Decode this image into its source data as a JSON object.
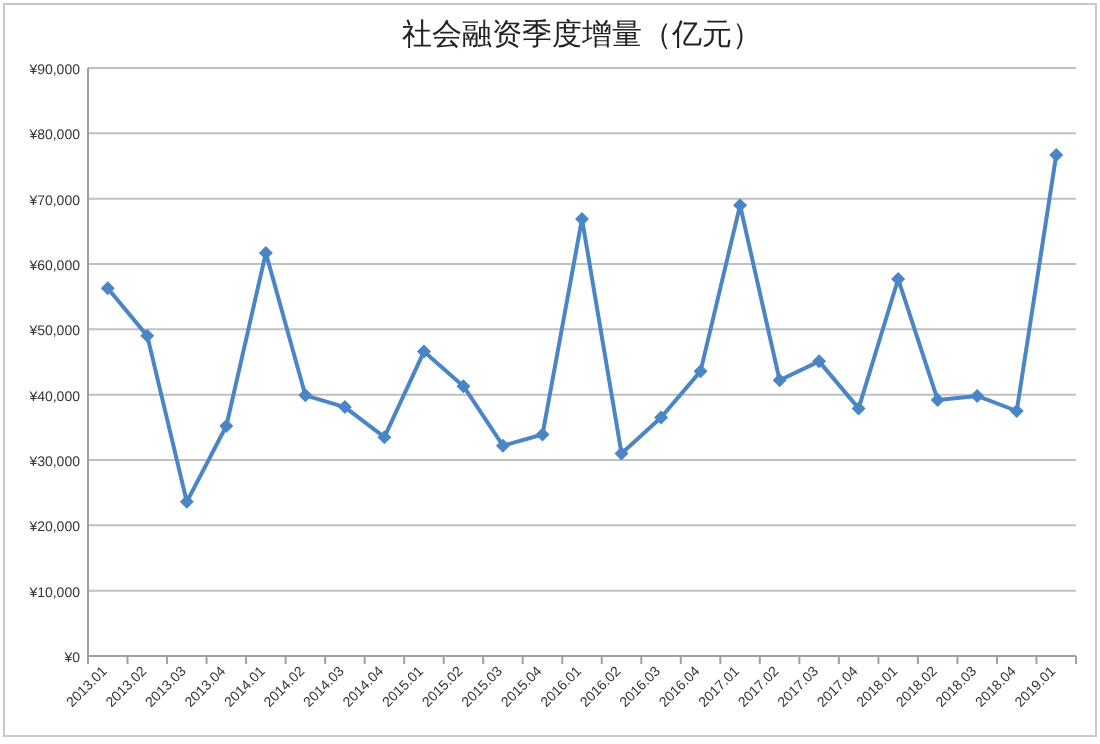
{
  "chart_data": {
    "type": "line",
    "title": "社会融资季度增量（亿元）",
    "categories": [
      "2013.01",
      "2013.02",
      "2013.03",
      "2013.04",
      "2014.01",
      "2014.02",
      "2014.03",
      "2014.04",
      "2015.01",
      "2015.02",
      "2015.03",
      "2015.04",
      "2016.01",
      "2016.02",
      "2016.03",
      "2016.04",
      "2017.01",
      "2017.02",
      "2017.03",
      "2017.04",
      "2018.01",
      "2018.02",
      "2018.03",
      "2018.04",
      "2019.01"
    ],
    "series": [
      {
        "color": "#4a86c5",
        "values": [
          56300,
          49000,
          23600,
          35200,
          61700,
          39900,
          38100,
          33500,
          46600,
          41300,
          32200,
          33900,
          66900,
          31000,
          36500,
          43600,
          69000,
          42200,
          45100,
          37900,
          57700,
          39200,
          39800,
          37500,
          76700
        ]
      }
    ],
    "ylim": [
      0,
      90000
    ],
    "yticks": [
      {
        "value": 0,
        "label": "¥0"
      },
      {
        "value": 10000,
        "label": "¥10,000"
      },
      {
        "value": 20000,
        "label": "¥20,000"
      },
      {
        "value": 30000,
        "label": "¥30,000"
      },
      {
        "value": 40000,
        "label": "¥40,000"
      },
      {
        "value": 50000,
        "label": "¥50,000"
      },
      {
        "value": 60000,
        "label": "¥60,000"
      },
      {
        "value": 70000,
        "label": "¥70,000"
      },
      {
        "value": 80000,
        "label": "¥80,000"
      },
      {
        "value": 90000,
        "label": "¥90,000"
      }
    ],
    "grid": "y",
    "marker": "diamond",
    "line_style": "solid"
  }
}
